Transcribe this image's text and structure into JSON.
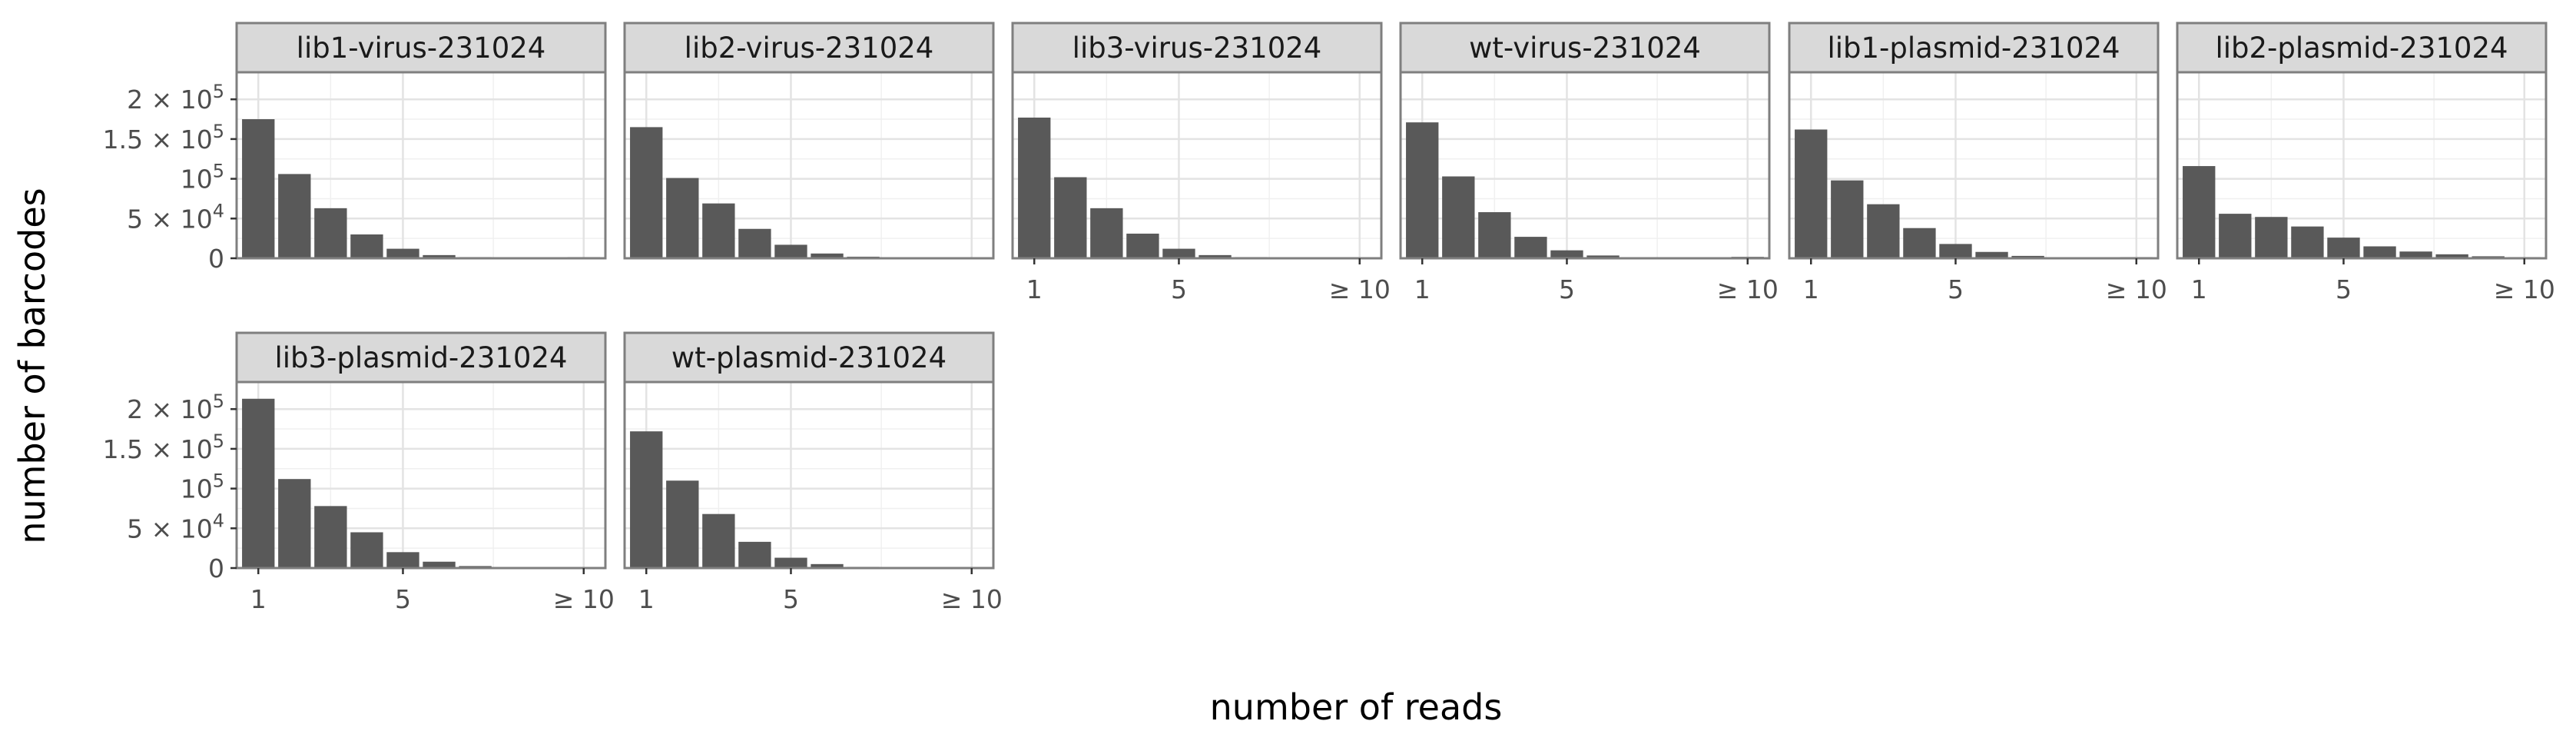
{
  "chart_data": {
    "type": "bar",
    "facet_layout": "wrap",
    "xlabel": "number of reads",
    "ylabel": "number of barcodes",
    "categories": [
      1,
      2,
      3,
      4,
      5,
      6,
      7,
      8,
      9,
      10
    ],
    "x_tick_labels": [
      "1",
      "5",
      "≥ 10"
    ],
    "x_tick_values": [
      1,
      5,
      10
    ],
    "ylim": [
      0,
      220000
    ],
    "y_ticks": [
      {
        "value": 0,
        "mantissa": "0",
        "base": "",
        "exp": ""
      },
      {
        "value": 50000,
        "mantissa": "5 × ",
        "base": "10",
        "exp": "4"
      },
      {
        "value": 100000,
        "mantissa": "",
        "base": "10",
        "exp": "5"
      },
      {
        "value": 150000,
        "mantissa": "1.5 × ",
        "base": "10",
        "exp": "5"
      },
      {
        "value": 200000,
        "mantissa": "2 × ",
        "base": "10",
        "exp": "5"
      }
    ],
    "grid": true,
    "bar_color": "#595959",
    "strip_color": "#d9d9d9",
    "panels": [
      {
        "name": "lib1-virus-231024",
        "values": [
          175000,
          106000,
          63000,
          30000,
          12000,
          4000,
          1500,
          600,
          300,
          1500
        ]
      },
      {
        "name": "lib2-virus-231024",
        "values": [
          165000,
          101000,
          69000,
          37000,
          17000,
          6000,
          2000,
          800,
          300,
          600
        ]
      },
      {
        "name": "lib3-virus-231024",
        "values": [
          177000,
          102000,
          63000,
          31000,
          12000,
          4000,
          1500,
          600,
          300,
          800
        ]
      },
      {
        "name": "wt-virus-231024",
        "values": [
          171000,
          103000,
          58000,
          27000,
          10000,
          3500,
          1200,
          500,
          300,
          1800
        ]
      },
      {
        "name": "lib1-plasmid-231024",
        "values": [
          162000,
          98000,
          68000,
          38000,
          18000,
          8000,
          3000,
          1200,
          600,
          1500
        ]
      },
      {
        "name": "lib2-plasmid-231024",
        "values": [
          116000,
          56000,
          52000,
          40000,
          26000,
          15000,
          8500,
          5000,
          2500,
          1500
        ]
      },
      {
        "name": "lib3-plasmid-231024",
        "values": [
          213000,
          112000,
          78000,
          45000,
          20000,
          8000,
          2500,
          1000,
          500,
          600
        ]
      },
      {
        "name": "wt-plasmid-231024",
        "values": [
          172000,
          110000,
          68000,
          33000,
          13000,
          5000,
          1500,
          700,
          300,
          600
        ]
      }
    ]
  }
}
